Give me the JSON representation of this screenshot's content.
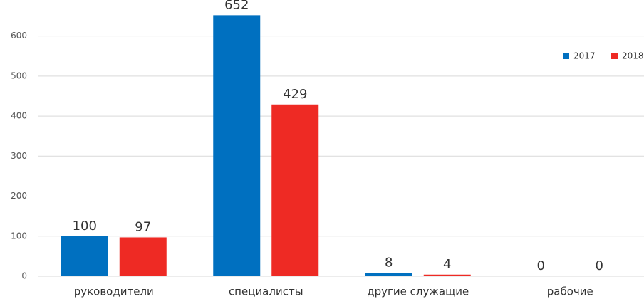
{
  "chart_data": {
    "type": "bar",
    "categories": [
      "руководители",
      "специалисты",
      "другие служащие",
      "рабочие"
    ],
    "series": [
      {
        "name": "2017",
        "color": "#0070c0",
        "values": [
          100,
          652,
          8,
          0
        ]
      },
      {
        "name": "2018",
        "color": "#ee2a24",
        "values": [
          97,
          429,
          4,
          0
        ]
      }
    ],
    "ylim": [
      0,
      690
    ],
    "yticks": [
      0,
      100,
      200,
      300,
      400,
      500,
      600
    ],
    "grid": true,
    "legend": "top-right"
  }
}
